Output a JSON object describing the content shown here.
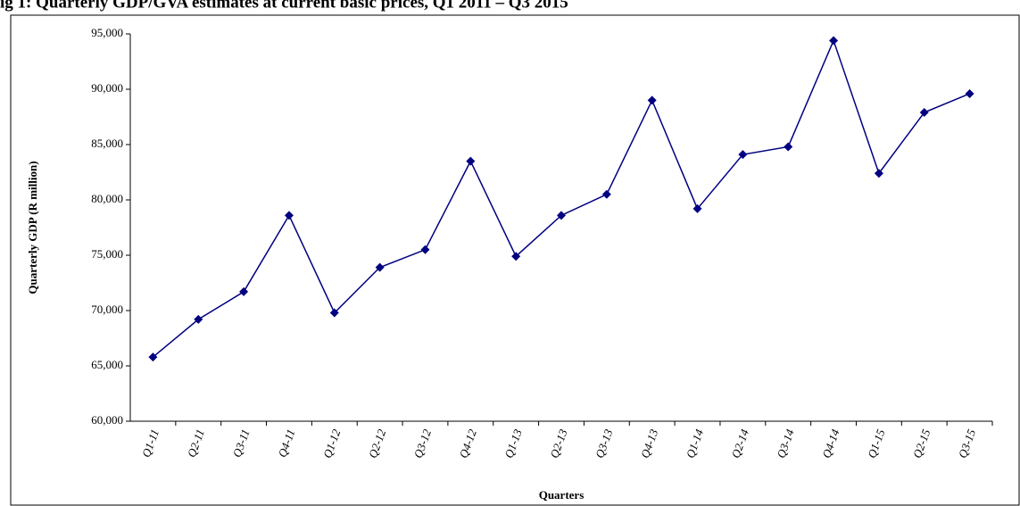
{
  "chart_data": {
    "type": "line",
    "title": "ig 1: Quarterly GDP/GVA estimates at current basic prices, Q1 2011 – Q3 2015",
    "x_label": "Quarters",
    "y_label": "Quarterly GDP (R million)",
    "categories": [
      "Q1-11",
      "Q2-11",
      "Q3-11",
      "Q4-11",
      "Q1-12",
      "Q2-12",
      "Q3-12",
      "Q4-12",
      "Q1-13",
      "Q2-13",
      "Q3-13",
      "Q4-13",
      "Q1-14",
      "Q2-14",
      "Q3-14",
      "Q4-14",
      "Q1-15",
      "Q2-15",
      "Q3-15"
    ],
    "series": [
      {
        "name": "Quarterly GDP",
        "color": "#000080",
        "values": [
          65800,
          69200,
          71700,
          78600,
          69800,
          73900,
          75500,
          83500,
          74900,
          78600,
          80500,
          89000,
          79200,
          84100,
          84800,
          94400,
          82400,
          87900,
          89600
        ]
      }
    ],
    "ylim": [
      60000,
      95000
    ],
    "yticks": [
      {
        "value": 60000,
        "label": "60,000"
      },
      {
        "value": 65000,
        "label": "65,000"
      },
      {
        "value": 70000,
        "label": "70,000"
      },
      {
        "value": 75000,
        "label": "75,000"
      },
      {
        "value": 80000,
        "label": "80,000"
      },
      {
        "value": 85000,
        "label": "85,000"
      },
      {
        "value": 90000,
        "label": "90,000"
      },
      {
        "value": 95000,
        "label": "95,000"
      }
    ],
    "grid": false
  }
}
